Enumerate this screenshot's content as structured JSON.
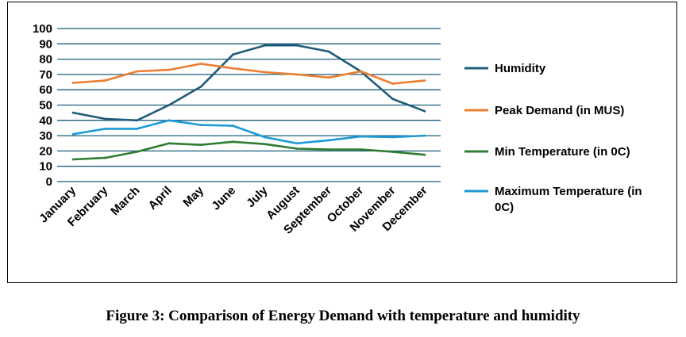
{
  "caption": "Figure 3: Comparison of Energy Demand with temperature and humidity",
  "chart_data": {
    "type": "line",
    "categories": [
      "January",
      "February",
      "March",
      "April",
      "May",
      "June",
      "July",
      "August",
      "September",
      "October",
      "November",
      "December"
    ],
    "ylim": [
      0,
      100
    ],
    "yticks": [
      0,
      10,
      20,
      30,
      40,
      50,
      60,
      70,
      80,
      90,
      100
    ],
    "grid": true,
    "legend_position": "right",
    "series": [
      {
        "name": "Humidity",
        "color": "#1f5c7a",
        "values": [
          45,
          41,
          40,
          50,
          62,
          83,
          89,
          89,
          85,
          72,
          54,
          46
        ]
      },
      {
        "name": "Peak Demand (in MUS)",
        "color": "#ed7d31",
        "values": [
          64.5,
          66,
          72,
          73,
          77,
          74,
          71.5,
          70,
          68,
          72,
          64,
          66
        ]
      },
      {
        "name": "Min Temperature (in 0C)",
        "color": "#2e7d32",
        "values": [
          14.5,
          15.5,
          19.5,
          25,
          24,
          26,
          24.5,
          21.5,
          21,
          21,
          19.5,
          17.5
        ]
      },
      {
        "name": "Maximum Temperature (in 0C)",
        "legend_lines": [
          "Maximum Temperature (in",
          "0C)"
        ],
        "color": "#1e9ad6",
        "values": [
          31,
          34.5,
          34.5,
          40,
          37,
          36.5,
          29,
          25,
          27,
          29.5,
          29,
          30
        ]
      }
    ]
  }
}
